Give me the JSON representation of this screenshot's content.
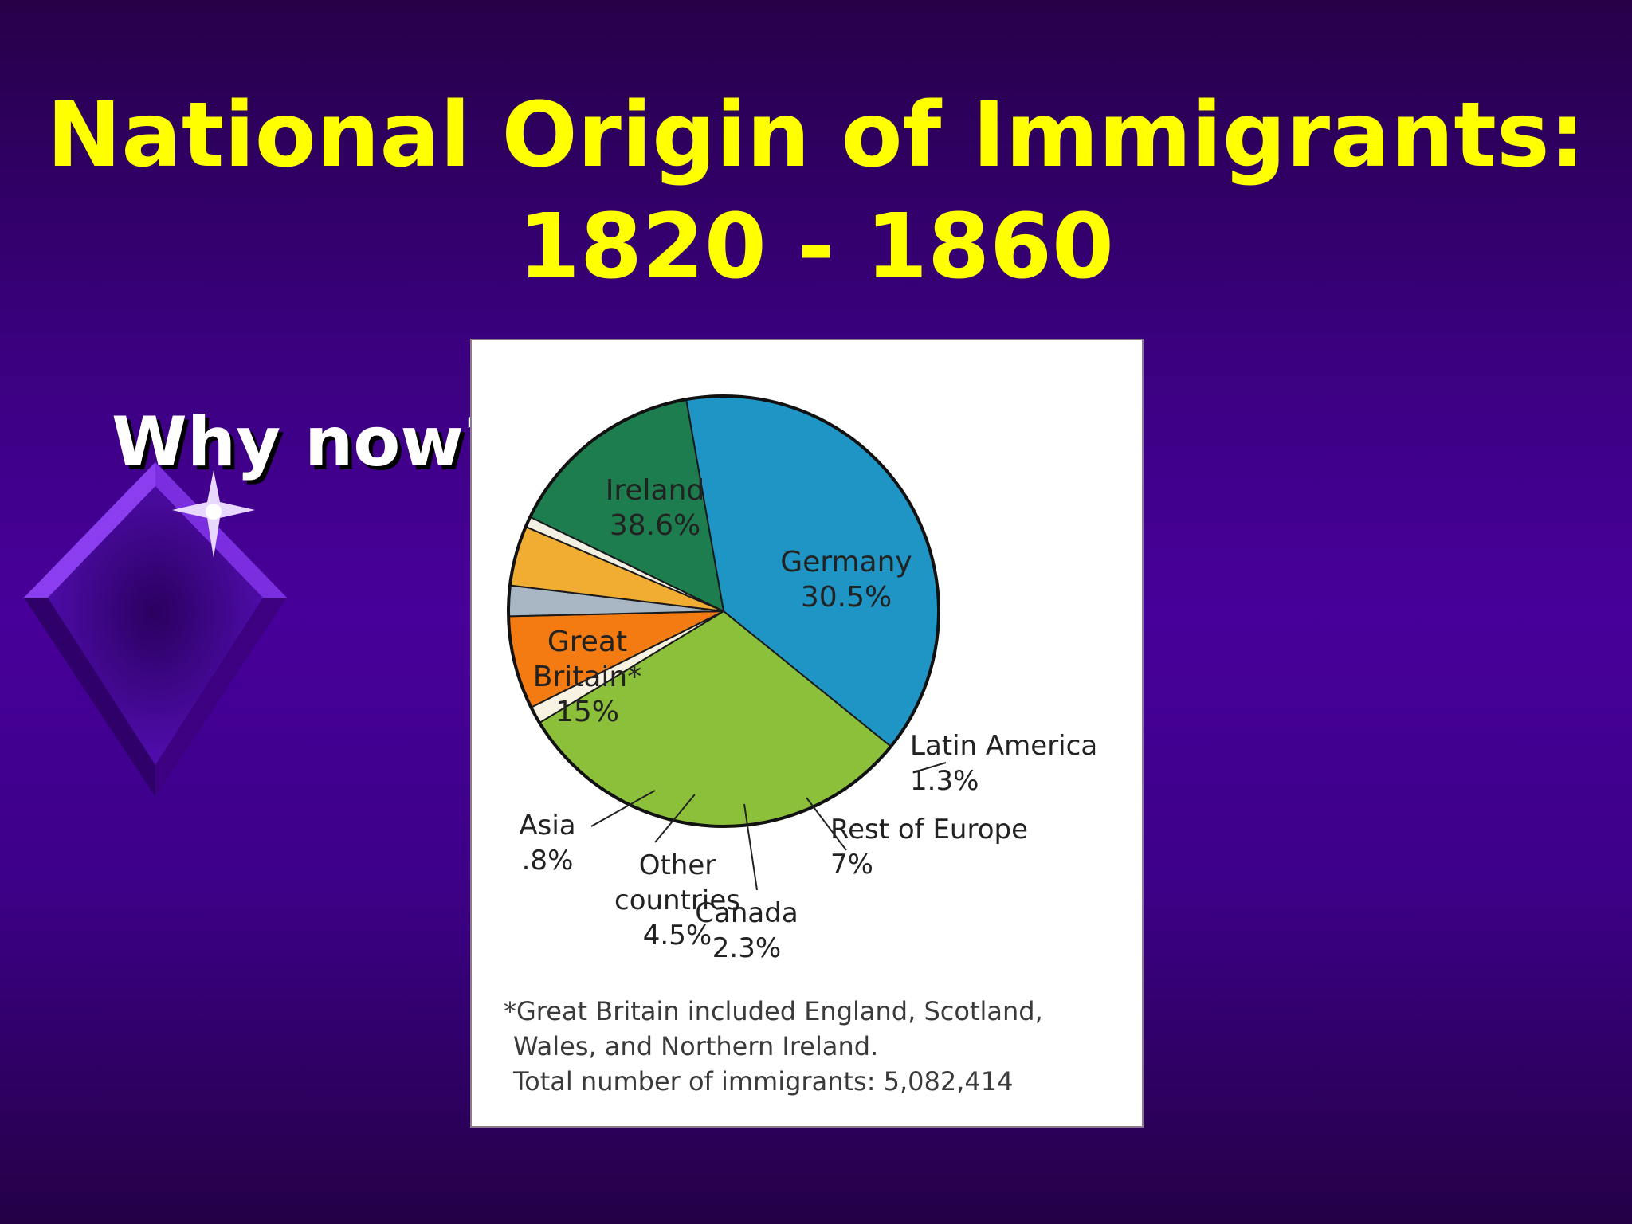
{
  "slide": {
    "title_line1": "National Origin of Immigrants:",
    "title_line2": "1820 - 1860",
    "bullet": "Why now?"
  },
  "colors": {
    "title": "#ffff00",
    "bullet": "#ffffff",
    "ireland": "#1e95c4",
    "germany": "#8cbf3a",
    "great_britain": "#1d7d4e",
    "asia": "#f2f0e2",
    "other_countries": "#f0ad32",
    "canada": "#a9b7c4",
    "rest_of_europe": "#f47a12",
    "latin_america": "#f7f2e1",
    "arrow": "#ffff33"
  },
  "chart_data": {
    "type": "pie",
    "title": "",
    "slices": [
      {
        "label_lines": [
          "Ireland",
          "38.6%"
        ],
        "value": 38.6
      },
      {
        "label_lines": [
          "Germany",
          "30.5%"
        ],
        "value": 30.5
      },
      {
        "label_lines": [
          "Latin America",
          "1.3%"
        ],
        "value": 1.3
      },
      {
        "label_lines": [
          "Rest of Europe",
          "7%"
        ],
        "value": 7
      },
      {
        "label_lines": [
          "Canada",
          "2.3%"
        ],
        "value": 2.3
      },
      {
        "label_lines": [
          "Other",
          "countries",
          "4.5%"
        ],
        "value": 4.5
      },
      {
        "label_lines": [
          "Asia",
          ".8%"
        ],
        "value": 0.8
      },
      {
        "label_lines": [
          "Great",
          "Britain*",
          "15%"
        ],
        "value": 15
      }
    ],
    "footnote_lines": [
      "*Great Britain included England, Scotland,",
      "Wales, and Northern Ireland.",
      "Total number of immigrants: 5,082,414"
    ]
  }
}
